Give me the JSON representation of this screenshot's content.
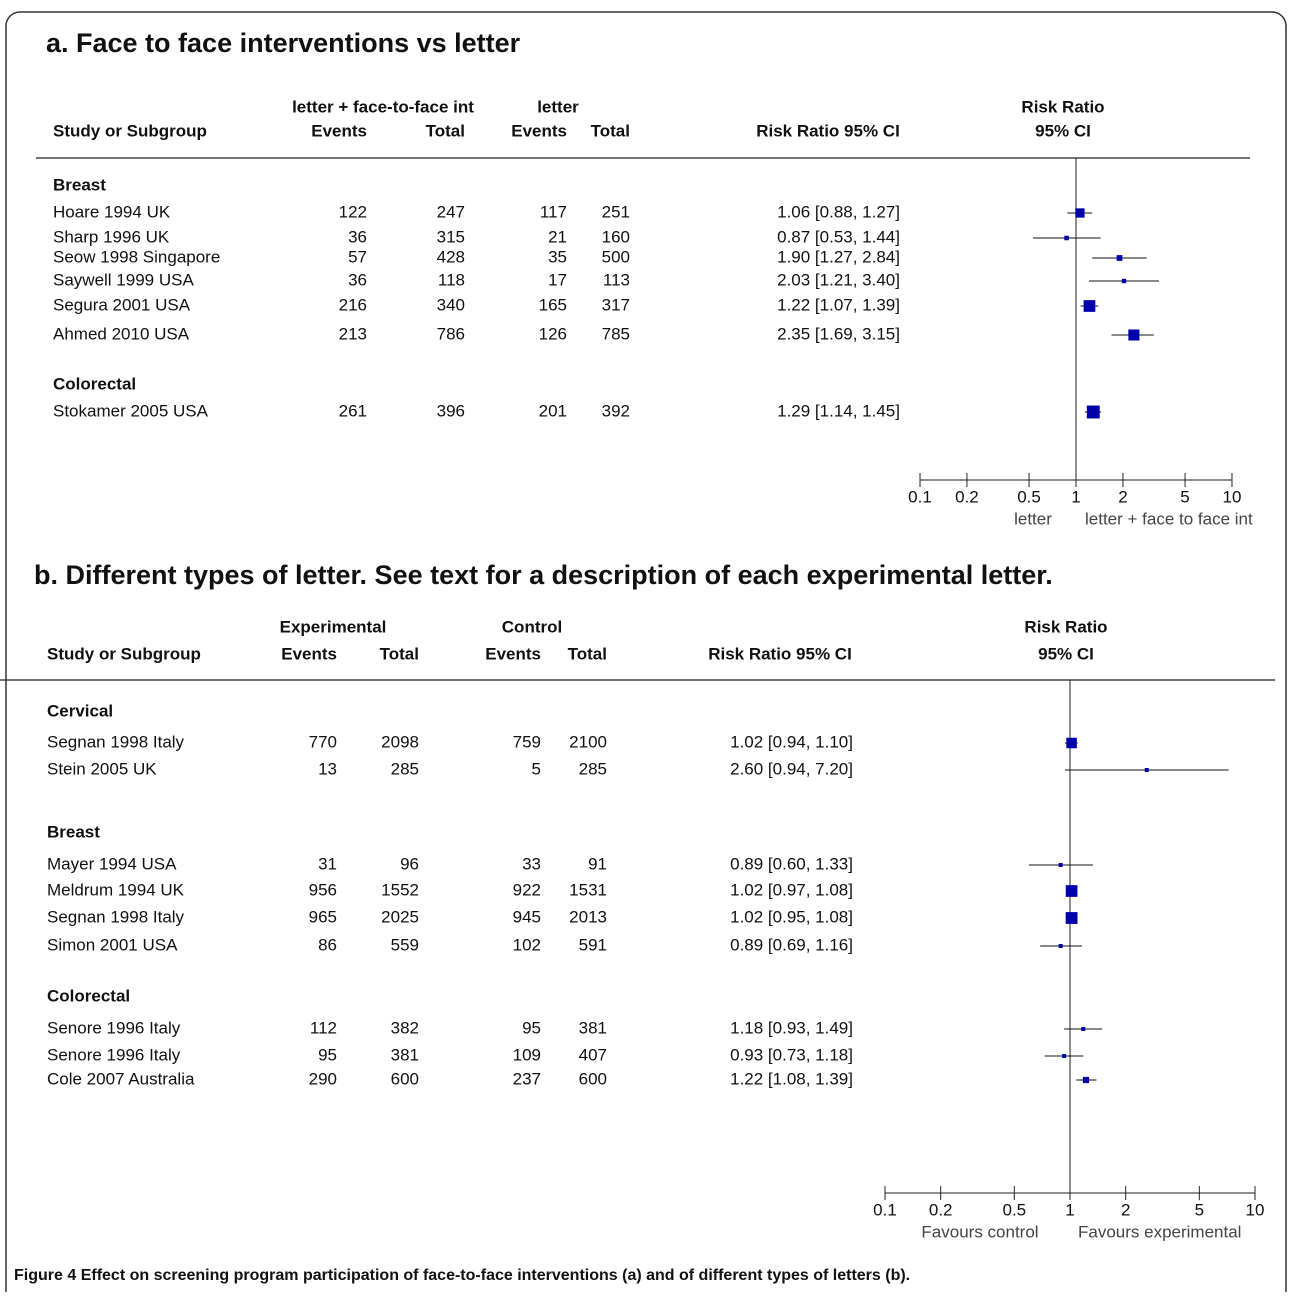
{
  "chart_data": [
    {
      "type": "forest",
      "title": "a. Face to face interventions vs letter",
      "study_header": "Study or Subgroup",
      "group_labels": [
        "letter + face-to-face int",
        "letter"
      ],
      "columns": [
        "Events",
        "Total",
        "Events",
        "Total"
      ],
      "ci_header": "Risk Ratio 95% CI",
      "plot_header": [
        "Risk Ratio",
        "95% CI"
      ],
      "subgroups": [
        {
          "name": "Breast",
          "studies": [
            {
              "name": "Hoare 1994  UK",
              "events1": 122,
              "total1": 247,
              "events2": 117,
              "total2": 251,
              "rr": 1.06,
              "ci_low": 0.88,
              "ci_high": 1.27,
              "label": "1.06 [0.88, 1.27]"
            },
            {
              "name": "Sharp 1996  UK",
              "events1": 36,
              "total1": 315,
              "events2": 21,
              "total2": 160,
              "rr": 0.87,
              "ci_low": 0.53,
              "ci_high": 1.44,
              "label": "0.87 [0.53, 1.44]"
            },
            {
              "name": "Seow 1998  Singapore",
              "events1": 57,
              "total1": 428,
              "events2": 35,
              "total2": 500,
              "rr": 1.9,
              "ci_low": 1.27,
              "ci_high": 2.84,
              "label": "1.90 [1.27, 2.84]"
            },
            {
              "name": "Saywell 1999  USA",
              "events1": 36,
              "total1": 118,
              "events2": 17,
              "total2": 113,
              "rr": 2.03,
              "ci_low": 1.21,
              "ci_high": 3.4,
              "label": "2.03 [1.21, 3.40]"
            },
            {
              "name": "Segura 2001 USA",
              "events1": 216,
              "total1": 340,
              "events2": 165,
              "total2": 317,
              "rr": 1.22,
              "ci_low": 1.07,
              "ci_high": 1.39,
              "label": "1.22 [1.07, 1.39]"
            },
            {
              "name": "Ahmed 2010 USA",
              "events1": 213,
              "total1": 786,
              "events2": 126,
              "total2": 785,
              "rr": 2.35,
              "ci_low": 1.69,
              "ci_high": 3.15,
              "label": "2.35 [1.69, 3.15]"
            }
          ]
        },
        {
          "name": "Colorectal",
          "studies": [
            {
              "name": "Stokamer 2005  USA",
              "events1": 261,
              "total1": 396,
              "events2": 201,
              "total2": 392,
              "rr": 1.29,
              "ci_low": 1.14,
              "ci_high": 1.45,
              "label": "1.29 [1.14, 1.45]"
            }
          ]
        }
      ],
      "xlim": [
        0.1,
        10
      ],
      "xticks": [
        0.1,
        0.2,
        0.5,
        1,
        2,
        5,
        10
      ],
      "log_scale": true,
      "favours": [
        "letter",
        "letter + face to face int"
      ],
      "color": "#0000aa"
    },
    {
      "type": "forest",
      "title": "b. Different types of letter. See text for a description of each experimental letter.",
      "study_header": "Study or Subgroup",
      "group_labels": [
        "Experimental",
        "Control"
      ],
      "columns": [
        "Events",
        "Total",
        "Events",
        "Total"
      ],
      "ci_header": "Risk Ratio   95% CI",
      "plot_header": [
        "Risk Ratio",
        "95% CI"
      ],
      "subgroups": [
        {
          "name": "Cervical",
          "studies": [
            {
              "name": "Segnan 1998  Italy",
              "events1": 770,
              "total1": 2098,
              "events2": 759,
              "total2": 2100,
              "rr": 1.02,
              "ci_low": 0.94,
              "ci_high": 1.1,
              "label": "1.02 [0.94, 1.10]"
            },
            {
              "name": "Stein 2005  UK",
              "events1": 13,
              "total1": 285,
              "events2": 5,
              "total2": 285,
              "rr": 2.6,
              "ci_low": 0.94,
              "ci_high": 7.2,
              "label": "2.60 [0.94, 7.20]"
            }
          ]
        },
        {
          "name": "Breast",
          "studies": [
            {
              "name": "Mayer 1994  USA",
              "events1": 31,
              "total1": 96,
              "events2": 33,
              "total2": 91,
              "rr": 0.89,
              "ci_low": 0.6,
              "ci_high": 1.33,
              "label": "0.89 [0.60, 1.33]"
            },
            {
              "name": "Meldrum 1994  UK",
              "events1": 956,
              "total1": 1552,
              "events2": 922,
              "total2": 1531,
              "rr": 1.02,
              "ci_low": 0.97,
              "ci_high": 1.08,
              "label": "1.02 [0.97, 1.08]"
            },
            {
              "name": "Segnan 1998  Italy",
              "events1": 965,
              "total1": 2025,
              "events2": 945,
              "total2": 2013,
              "rr": 1.02,
              "ci_low": 0.95,
              "ci_high": 1.08,
              "label": "1.02 [0.95, 1.08]"
            },
            {
              "name": "Simon 2001 USA",
              "events1": 86,
              "total1": 559,
              "events2": 102,
              "total2": 591,
              "rr": 0.89,
              "ci_low": 0.69,
              "ci_high": 1.16,
              "label": "0.89 [0.69, 1.16]"
            }
          ]
        },
        {
          "name": "Colorectal",
          "studies": [
            {
              "name": "Senore 1996  Italy",
              "events1": 112,
              "total1": 382,
              "events2": 95,
              "total2": 381,
              "rr": 1.18,
              "ci_low": 0.93,
              "ci_high": 1.49,
              "label": "1.18 [0.93, 1.49]"
            },
            {
              "name": "Senore 1996 Italy",
              "events1": 95,
              "total1": 381,
              "events2": 109,
              "total2": 407,
              "rr": 0.93,
              "ci_low": 0.73,
              "ci_high": 1.18,
              "label": "0.93 [0.73, 1.18]"
            },
            {
              "name": "Cole 2007  Australia",
              "events1": 290,
              "total1": 600,
              "events2": 237,
              "total2": 600,
              "rr": 1.22,
              "ci_low": 1.08,
              "ci_high": 1.39,
              "label": "1.22 [1.08, 1.39]"
            }
          ]
        }
      ],
      "xlim": [
        0.1,
        10
      ],
      "xticks": [
        0.1,
        0.2,
        0.5,
        1,
        2,
        5,
        10
      ],
      "log_scale": true,
      "favours": [
        "Favours control",
        "Favours experimental"
      ],
      "color": "#0000aa"
    }
  ],
  "caption": {
    "label": "Figure 4",
    "text": "Effect on screening program participation of face-to-face interventions (a) and of different types of letters (b)."
  }
}
